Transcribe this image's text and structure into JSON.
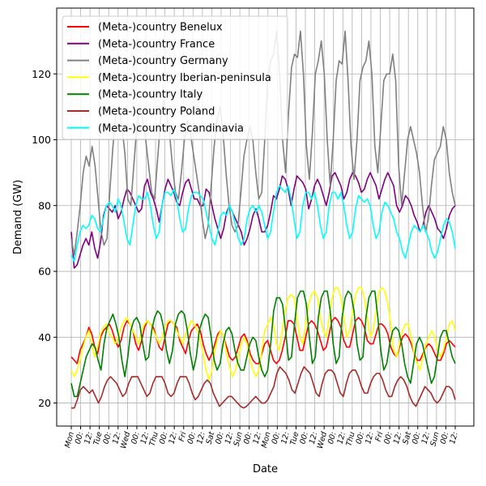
{
  "chart_data": {
    "type": "line",
    "title": "",
    "xlabel": "Date",
    "ylabel": "Demand (GW)",
    "ylim": [
      13,
      140
    ],
    "yticks": [
      20,
      40,
      60,
      80,
      100,
      120
    ],
    "grid": true,
    "legend_position": "top-left",
    "x_tick_labels": [
      "Mon",
      "00:",
      "12:",
      "Tue",
      "00:",
      "12:",
      "Wed",
      "00:",
      "12:",
      "Thu",
      "00:",
      "12:",
      "Fri",
      "00:",
      "12:",
      "Sat",
      "00:",
      "12:",
      "Sun",
      "00:",
      "12:",
      "Mon",
      "00:",
      "12:",
      "Tue",
      "00:",
      "12:",
      "Wed",
      "00:",
      "12:",
      "Thu",
      "00:",
      "12:",
      "Fri",
      "00:",
      "12:",
      "Sat",
      "00:",
      "12:",
      "Sun",
      "00:",
      "12:"
    ],
    "series": [
      {
        "name": "(Meta-)country Benelux",
        "color": "#ff0000",
        "values": [
          34,
          33,
          32,
          36,
          38,
          40,
          43,
          41,
          37,
          35,
          40,
          42,
          43,
          44,
          42,
          39,
          37,
          39,
          43,
          45,
          44,
          42,
          38,
          36,
          39,
          43,
          45,
          44,
          43,
          40,
          37,
          36,
          40,
          44,
          45,
          44,
          43,
          39,
          37,
          35,
          39,
          42,
          43,
          44,
          42,
          38,
          35,
          33,
          35,
          38,
          41,
          42,
          40,
          37,
          34,
          33,
          34,
          37,
          40,
          41,
          39,
          35,
          33,
          32,
          32,
          35,
          38,
          39,
          36,
          33,
          32,
          33,
          36,
          40,
          45,
          45,
          44,
          40,
          36,
          36,
          40,
          44,
          45,
          44,
          42,
          39,
          36,
          37,
          41,
          45,
          46,
          45,
          43,
          39,
          37,
          37,
          41,
          45,
          46,
          45,
          43,
          39,
          38,
          38,
          41,
          44,
          44,
          43,
          41,
          37,
          35,
          34,
          37,
          40,
          41,
          40,
          38,
          35,
          33,
          33,
          35,
          37,
          38,
          37,
          35,
          33,
          33,
          35,
          38,
          39,
          38,
          37
        ]
      },
      {
        "name": "(Meta-)country France",
        "color": "#800080",
        "values": [
          72,
          61,
          62,
          65,
          68,
          70,
          68,
          72,
          67,
          64,
          69,
          77,
          80,
          79,
          78,
          80,
          76,
          78,
          82,
          85,
          84,
          82,
          80,
          78,
          79,
          86,
          88,
          84,
          82,
          79,
          75,
          80,
          85,
          88,
          86,
          84,
          81,
          80,
          84,
          87,
          88,
          85,
          82,
          82,
          80,
          80,
          85,
          84,
          80,
          76,
          73,
          70,
          73,
          78,
          80,
          78,
          76,
          74,
          72,
          68,
          70,
          73,
          77,
          79,
          76,
          72,
          72,
          74,
          78,
          83,
          82,
          85,
          89,
          88,
          85,
          80,
          85,
          89,
          88,
          87,
          85,
          79,
          82,
          86,
          88,
          86,
          83,
          80,
          84,
          89,
          90,
          88,
          86,
          82,
          84,
          88,
          90,
          89,
          87,
          84,
          85,
          88,
          90,
          88,
          86,
          82,
          85,
          88,
          90,
          88,
          86,
          80,
          78,
          80,
          83,
          82,
          80,
          77,
          75,
          72,
          74,
          78,
          80,
          78,
          76,
          73,
          72,
          70,
          73,
          77,
          79,
          80
        ]
      },
      {
        "name": "(Meta-)country Germany",
        "color": "#808080",
        "values": [
          70,
          65,
          72,
          80,
          90,
          95,
          92,
          98,
          92,
          82,
          72,
          68,
          70,
          85,
          98,
          108,
          110,
          104,
          96,
          82,
          80,
          92,
          104,
          110,
          106,
          100,
          92,
          84,
          82,
          94,
          106,
          112,
          108,
          102,
          92,
          84,
          82,
          90,
          100,
          106,
          102,
          96,
          90,
          84,
          76,
          70,
          74,
          86,
          98,
          106,
          110,
          102,
          90,
          80,
          74,
          72,
          74,
          84,
          95,
          100,
          104,
          100,
          90,
          82,
          84,
          100,
          118,
          124,
          126,
          133,
          120,
          100,
          90,
          108,
          122,
          126,
          125,
          133,
          120,
          98,
          88,
          102,
          120,
          124,
          130,
          120,
          100,
          86,
          100,
          118,
          124,
          123,
          133,
          118,
          98,
          88,
          100,
          118,
          122,
          124,
          130,
          120,
          98,
          90,
          104,
          118,
          120,
          120,
          126,
          118,
          92,
          80,
          90,
          100,
          104,
          100,
          96,
          90,
          80,
          72,
          76,
          86,
          94,
          96,
          98,
          104,
          100,
          90,
          84,
          80
        ]
      },
      {
        "name": "(Meta-)country Iberian-peninsula",
        "color": "#ffff00",
        "values": [
          30,
          28,
          30,
          33,
          37,
          40,
          42,
          38,
          34,
          37,
          41,
          43,
          44,
          41,
          40,
          38,
          40,
          43,
          45,
          46,
          44,
          42,
          40,
          38,
          42,
          44,
          45,
          44,
          42,
          40,
          38,
          40,
          43,
          45,
          45,
          44,
          42,
          40,
          38,
          41,
          43,
          45,
          44,
          42,
          39,
          35,
          30,
          27,
          30,
          36,
          40,
          42,
          40,
          35,
          31,
          28,
          30,
          34,
          38,
          40,
          38,
          33,
          30,
          28,
          30,
          36,
          42,
          44,
          46,
          44,
          38,
          36,
          42,
          48,
          52,
          53,
          52,
          46,
          40,
          38,
          44,
          50,
          53,
          54,
          52,
          46,
          42,
          40,
          46,
          52,
          55,
          55,
          52,
          46,
          40,
          42,
          48,
          53,
          55,
          55,
          52,
          46,
          40,
          42,
          48,
          54,
          55,
          54,
          50,
          44,
          36,
          34,
          38,
          42,
          44,
          44,
          40,
          35,
          32,
          30,
          34,
          38,
          40,
          42,
          40,
          36,
          34,
          36,
          40,
          44,
          45,
          42
        ]
      },
      {
        "name": "(Meta-)country Italy",
        "color": "#008000",
        "values": [
          26,
          22,
          22,
          26,
          30,
          34,
          36,
          38,
          37,
          33,
          30,
          38,
          43,
          45,
          47,
          44,
          40,
          33,
          28,
          34,
          42,
          45,
          46,
          44,
          38,
          33,
          34,
          42,
          46,
          48,
          47,
          43,
          36,
          32,
          36,
          44,
          47,
          48,
          47,
          42,
          35,
          30,
          34,
          42,
          45,
          47,
          46,
          40,
          33,
          30,
          32,
          38,
          42,
          43,
          41,
          36,
          32,
          30,
          30,
          34,
          38,
          40,
          39,
          34,
          30,
          28,
          30,
          38,
          48,
          52,
          52,
          50,
          42,
          33,
          34,
          44,
          52,
          54,
          54,
          50,
          40,
          32,
          34,
          46,
          52,
          54,
          54,
          48,
          38,
          32,
          34,
          46,
          52,
          54,
          53,
          48,
          38,
          33,
          34,
          46,
          52,
          54,
          54,
          46,
          36,
          30,
          32,
          38,
          42,
          43,
          42,
          38,
          32,
          28,
          26,
          32,
          38,
          40,
          38,
          34,
          30,
          26,
          28,
          34,
          40,
          42,
          42,
          38,
          34,
          32
        ]
      },
      {
        "name": "(Meta-)country Poland",
        "color": "#a52a2a",
        "values": [
          18.5,
          18.5,
          21,
          24,
          25,
          24,
          23,
          24,
          22,
          20,
          22,
          25,
          27,
          28,
          27,
          26,
          24,
          22,
          23,
          26,
          28,
          28,
          28,
          26,
          24,
          22,
          23,
          26,
          28,
          28,
          28,
          26,
          23,
          22,
          23,
          26,
          28,
          28,
          28,
          26,
          23,
          21,
          22,
          24,
          26,
          27,
          26,
          23,
          21,
          19,
          20,
          21,
          22,
          22,
          21,
          20,
          19,
          18.5,
          19,
          20,
          21,
          22,
          21,
          20,
          20,
          21,
          23,
          25,
          29,
          31,
          30,
          29,
          27,
          24,
          23,
          26,
          29,
          31,
          30,
          29,
          26,
          23,
          22,
          26,
          29,
          30,
          30,
          29,
          26,
          23,
          22,
          26,
          29,
          30,
          30,
          28,
          25,
          23,
          23,
          26,
          28,
          29,
          29,
          27,
          24,
          22,
          22,
          25,
          27,
          28,
          27,
          25,
          22,
          20,
          19,
          21,
          23,
          25,
          24,
          23,
          21,
          20,
          21,
          23,
          25,
          25,
          24,
          21
        ]
      },
      {
        "name": "(Meta-)country Scandinavia",
        "color": "#00ffff",
        "values": [
          65,
          63,
          68,
          72,
          74,
          73,
          74,
          77,
          76,
          73,
          72,
          76,
          80,
          81,
          80,
          78,
          82,
          80,
          75,
          70,
          68,
          74,
          80,
          83,
          82,
          82,
          84,
          80,
          74,
          70,
          72,
          80,
          84,
          84,
          83,
          85,
          82,
          76,
          72,
          73,
          79,
          83,
          84,
          84,
          83,
          82,
          78,
          74,
          70,
          68,
          72,
          77,
          78,
          77,
          80,
          78,
          74,
          70,
          68,
          70,
          76,
          79,
          80,
          78,
          80,
          78,
          74,
          70,
          72,
          78,
          84,
          86,
          85,
          84,
          86,
          82,
          76,
          70,
          72,
          80,
          84,
          84,
          82,
          84,
          80,
          74,
          70,
          72,
          80,
          84,
          84,
          82,
          84,
          80,
          74,
          70,
          72,
          79,
          83,
          82,
          81,
          82,
          80,
          74,
          70,
          72,
          78,
          81,
          80,
          78,
          76,
          72,
          70,
          66,
          64,
          68,
          72,
          74,
          73,
          72,
          74,
          72,
          70,
          66,
          64,
          66,
          70,
          74,
          76,
          75,
          72,
          67
        ]
      }
    ]
  }
}
